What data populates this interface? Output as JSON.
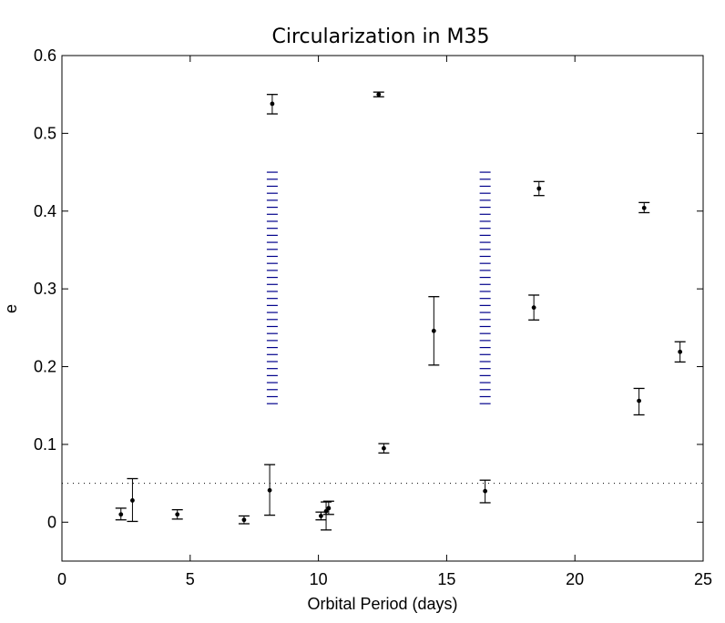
{
  "chart_data": {
    "type": "scatter",
    "title": "Circularization in M35",
    "xlabel": "Orbital Period (days)",
    "ylabel": "e",
    "xlim": [
      0,
      25
    ],
    "ylim": [
      -0.05,
      0.6
    ],
    "xticks": [
      0,
      5,
      10,
      15,
      20,
      25
    ],
    "yticks": [
      0,
      0.1,
      0.2,
      0.3,
      0.4,
      0.5,
      0.6
    ],
    "xtick_labels": [
      "0",
      "5",
      "10",
      "15",
      "20",
      "25"
    ],
    "ytick_labels": [
      "0",
      "0.1",
      "0.2",
      "0.3",
      "0.4",
      "0.5",
      "0.6"
    ],
    "grid": false,
    "reference_line": {
      "y": 0.05,
      "style": "dotted"
    },
    "series": [
      {
        "marker": "dot",
        "color": "#000000",
        "points": [
          {
            "x": 2.3,
            "y": 0.01,
            "lo": 0.003,
            "hi": 0.018
          },
          {
            "x": 2.75,
            "y": 0.028,
            "lo": 0.001,
            "hi": 0.056
          },
          {
            "x": 4.5,
            "y": 0.01,
            "lo": 0.004,
            "hi": 0.016
          },
          {
            "x": 7.1,
            "y": 0.003,
            "lo": -0.002,
            "hi": 0.008
          },
          {
            "x": 8.1,
            "y": 0.041,
            "lo": 0.009,
            "hi": 0.074
          },
          {
            "x": 8.2,
            "y": 0.538,
            "lo": 0.525,
            "hi": 0.55
          },
          {
            "x": 10.1,
            "y": 0.008,
            "lo": 0.003,
            "hi": 0.013
          },
          {
            "x": 10.3,
            "y": 0.014,
            "lo": -0.01,
            "hi": 0.026
          },
          {
            "x": 10.4,
            "y": 0.018,
            "lo": 0.01,
            "hi": 0.027
          },
          {
            "x": 12.35,
            "y": 0.55,
            "lo": 0.547,
            "hi": 0.553
          },
          {
            "x": 12.55,
            "y": 0.095,
            "lo": 0.089,
            "hi": 0.101
          },
          {
            "x": 14.5,
            "y": 0.246,
            "lo": 0.202,
            "hi": 0.29
          },
          {
            "x": 16.5,
            "y": 0.04,
            "lo": 0.025,
            "hi": 0.054
          },
          {
            "x": 18.4,
            "y": 0.276,
            "lo": 0.26,
            "hi": 0.292
          },
          {
            "x": 18.6,
            "y": 0.429,
            "lo": 0.42,
            "hi": 0.438
          },
          {
            "x": 22.5,
            "y": 0.156,
            "lo": 0.138,
            "hi": 0.172
          },
          {
            "x": 22.7,
            "y": 0.404,
            "lo": 0.398,
            "hi": 0.411
          },
          {
            "x": 24.1,
            "y": 0.219,
            "lo": 0.206,
            "hi": 0.232
          }
        ]
      },
      {
        "style": "dashed-ticks",
        "color": "#00008b",
        "columns": [
          {
            "x": 8.2,
            "y_min": 0.15,
            "y_max": 0.45
          },
          {
            "x": 16.5,
            "y_min": 0.15,
            "y_max": 0.45
          }
        ]
      }
    ]
  }
}
